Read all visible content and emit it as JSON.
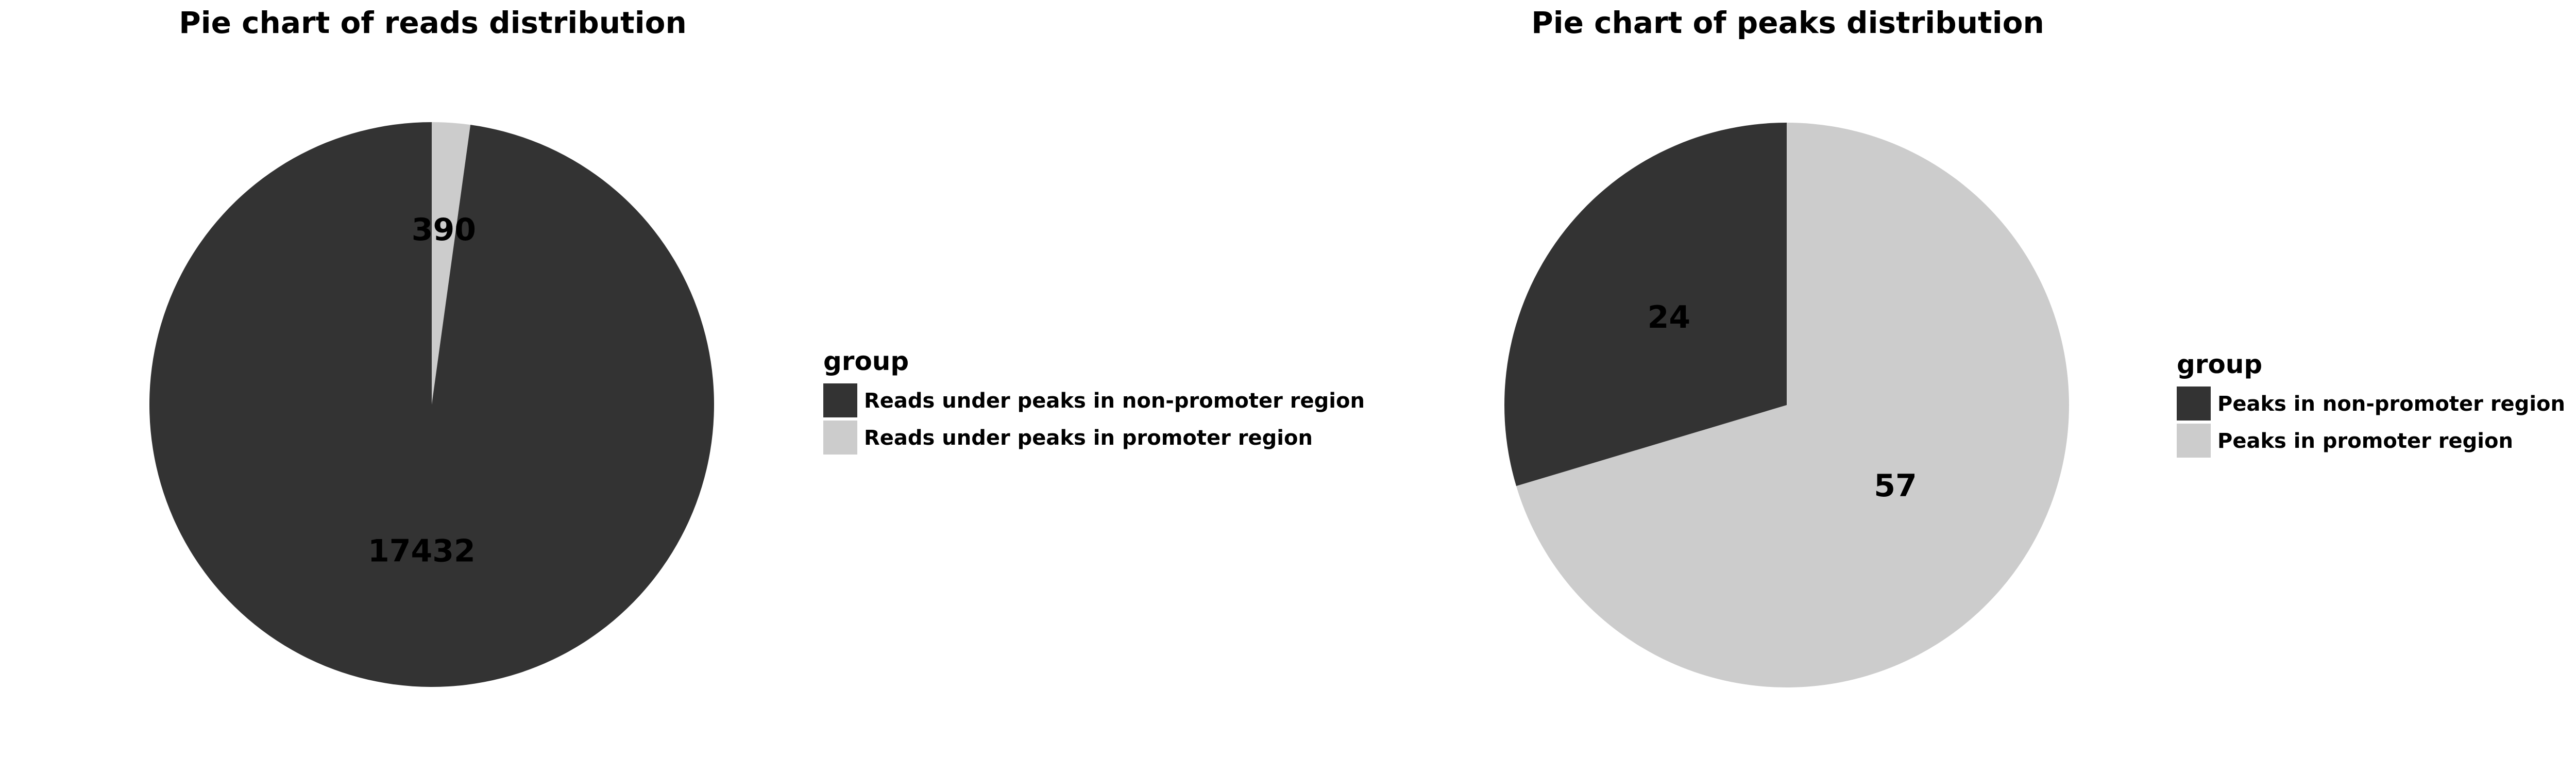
{
  "chart_data": [
    {
      "type": "pie",
      "title": "Pie chart of reads distribution",
      "legend_title": "group",
      "legend_position": "right",
      "start": "top",
      "direction": "clockwise",
      "slices": [
        {
          "label": "Reads under peaks in promoter region",
          "value": 390,
          "color": "#cccccc"
        },
        {
          "label": "Reads under peaks in non-promoter region",
          "value": 17432,
          "color": "#333333"
        }
      ],
      "legend": [
        {
          "label": "Reads under peaks in non-promoter region",
          "color": "#333333"
        },
        {
          "label": "Reads under peaks in promoter region",
          "color": "#cccccc"
        }
      ]
    },
    {
      "type": "pie",
      "title": "Pie chart of peaks distribution",
      "legend_title": "group",
      "legend_position": "right",
      "start": "top",
      "direction": "clockwise",
      "slices": [
        {
          "label": "Peaks in promoter region",
          "value": 57,
          "color": "#cccccc"
        },
        {
          "label": "Peaks in non-promoter region",
          "value": 24,
          "color": "#333333"
        }
      ],
      "legend": [
        {
          "label": "Peaks in non-promoter region",
          "color": "#333333"
        },
        {
          "label": "Peaks in promoter region",
          "color": "#cccccc"
        }
      ]
    }
  ]
}
